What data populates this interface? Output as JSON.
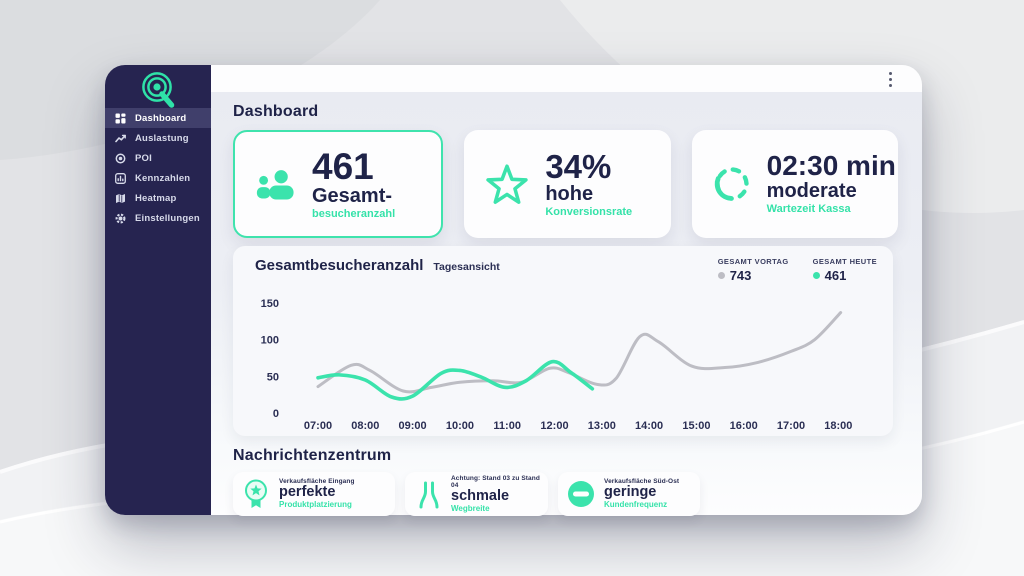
{
  "colors": {
    "accent": "#35e2a9",
    "sidebar_navy": "#262450",
    "text_navy": "#1f2348",
    "line_gray": "#bdbdc4"
  },
  "window": {
    "menu_icon": "kebab-menu"
  },
  "sidebar": {
    "items": [
      {
        "label": "Dashboard",
        "icon": "dashboard-grid-icon",
        "active": true
      },
      {
        "label": "Auslastung",
        "icon": "trend-line-icon",
        "active": false
      },
      {
        "label": "POI",
        "icon": "target-icon",
        "active": false
      },
      {
        "label": "Kennzahlen",
        "icon": "bar-chart-icon",
        "active": false
      },
      {
        "label": "Heatmap",
        "icon": "map-icon",
        "active": false
      },
      {
        "label": "Einstellungen",
        "icon": "gear-icon",
        "active": false
      }
    ]
  },
  "header": {
    "title": "Dashboard"
  },
  "kpis": [
    {
      "value": "461",
      "label": "Gesamt-",
      "sublabel": "besucheranzahl",
      "icon": "visitors-group-icon",
      "highlighted": true
    },
    {
      "value": "34%",
      "label": "hohe",
      "sublabel": "Konversionsrate",
      "icon": "star-icon",
      "highlighted": false
    },
    {
      "value": "02:30 min",
      "label": "moderate",
      "sublabel": "Wartezeit Kassa",
      "icon": "timer-icon",
      "highlighted": false
    }
  ],
  "chart_card": {
    "title": "Gesamtbesucheranzahl",
    "subtitle": "Tagesansicht",
    "legend": [
      {
        "label": "GESAMT VORTAG",
        "value": "743"
      },
      {
        "label": "GESAMT HEUTE",
        "value": "461"
      }
    ]
  },
  "chart_data": {
    "type": "line",
    "title": "Gesamtbesucheranzahl",
    "subtitle": "Tagesansicht",
    "x_ticks": [
      "07:00",
      "08:00",
      "09:00",
      "10:00",
      "11:00",
      "12:00",
      "13:00",
      "14:00",
      "15:00",
      "16:00",
      "17:00",
      "18:00"
    ],
    "y_ticks": [
      0,
      50,
      100,
      150
    ],
    "ylim": [
      0,
      150
    ],
    "grid": false,
    "legend_position": "top-right",
    "series": [
      {
        "name": "GESAMT VORTAG",
        "total": 743,
        "color": "#bdbdc4",
        "points": [
          [
            7,
            36
          ],
          [
            7.7,
            65
          ],
          [
            8.1,
            58
          ],
          [
            8.8,
            30
          ],
          [
            9.4,
            35
          ],
          [
            10,
            42
          ],
          [
            10.7,
            44
          ],
          [
            11.3,
            42
          ],
          [
            11.9,
            61
          ],
          [
            12.3,
            55
          ],
          [
            12.9,
            39
          ],
          [
            13.3,
            47
          ],
          [
            13.8,
            104
          ],
          [
            14.2,
            97
          ],
          [
            14.9,
            64
          ],
          [
            15.6,
            62
          ],
          [
            16.3,
            69
          ],
          [
            17,
            84
          ],
          [
            17.5,
            100
          ],
          [
            18.05,
            137
          ]
        ]
      },
      {
        "name": "GESAMT HEUTE",
        "total": 461,
        "color": "#3be3ac",
        "points": [
          [
            7,
            48
          ],
          [
            7.45,
            52
          ],
          [
            8,
            45
          ],
          [
            8.55,
            22
          ],
          [
            9,
            23
          ],
          [
            9.6,
            54
          ],
          [
            10,
            58
          ],
          [
            10.45,
            49
          ],
          [
            10.95,
            35
          ],
          [
            11.4,
            44
          ],
          [
            11.95,
            70
          ],
          [
            12.35,
            55
          ],
          [
            12.8,
            33
          ]
        ]
      }
    ]
  },
  "messages": {
    "title": "Nachrichtenzentrum",
    "cards": [
      {
        "icon": "award-badge-icon",
        "context": "Verkaufsfläche Eingang",
        "headline": "perfekte",
        "subline": "Produktplatzierung"
      },
      {
        "icon": "narrow-path-icon",
        "context": "Achtung: Stand 03 zu Stand 04",
        "headline": "schmale",
        "subline": "Wegbreite"
      },
      {
        "icon": "no-entry-icon",
        "context": "Verkaufsfläche Süd-Ost",
        "headline": "geringe",
        "subline": "Kundenfrequenz"
      }
    ]
  }
}
